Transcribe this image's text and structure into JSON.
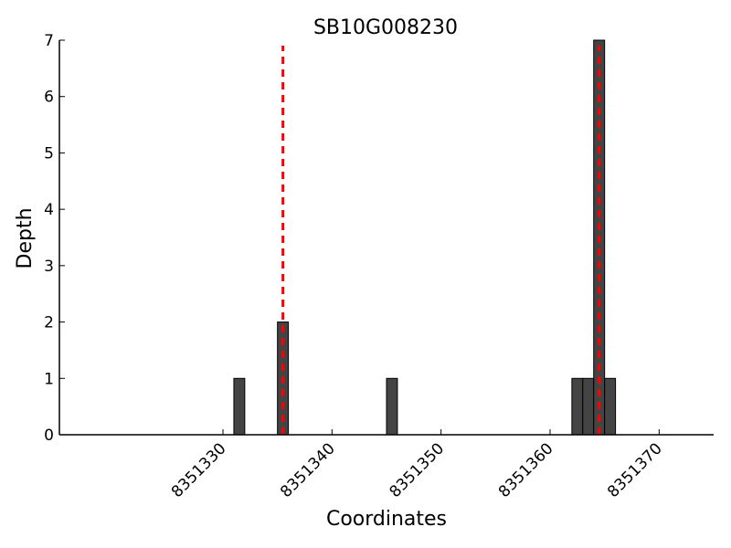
{
  "chart_data": {
    "type": "bar",
    "title": "SB10G008230",
    "xlabel": "Coordinates",
    "ylabel": "Depth",
    "xlim": [
      8351315,
      8351375
    ],
    "ylim": [
      0,
      7
    ],
    "x_ticks": [
      8351330,
      8351340,
      8351350,
      8351360,
      8351370
    ],
    "y_ticks": [
      0,
      1,
      2,
      3,
      4,
      5,
      6,
      7
    ],
    "bars": [
      {
        "x": 8351331,
        "value": 1
      },
      {
        "x": 8351335,
        "value": 2
      },
      {
        "x": 8351345,
        "value": 1
      },
      {
        "x": 8351362,
        "value": 1
      },
      {
        "x": 8351363,
        "value": 1
      },
      {
        "x": 8351364,
        "value": 7
      },
      {
        "x": 8351365,
        "value": 1
      }
    ],
    "reference_lines": [
      8351335,
      8351364
    ],
    "grid": false,
    "bar_color": "#444444",
    "bar_edge_color": "#000000",
    "reference_line_color": "#ff0000"
  }
}
